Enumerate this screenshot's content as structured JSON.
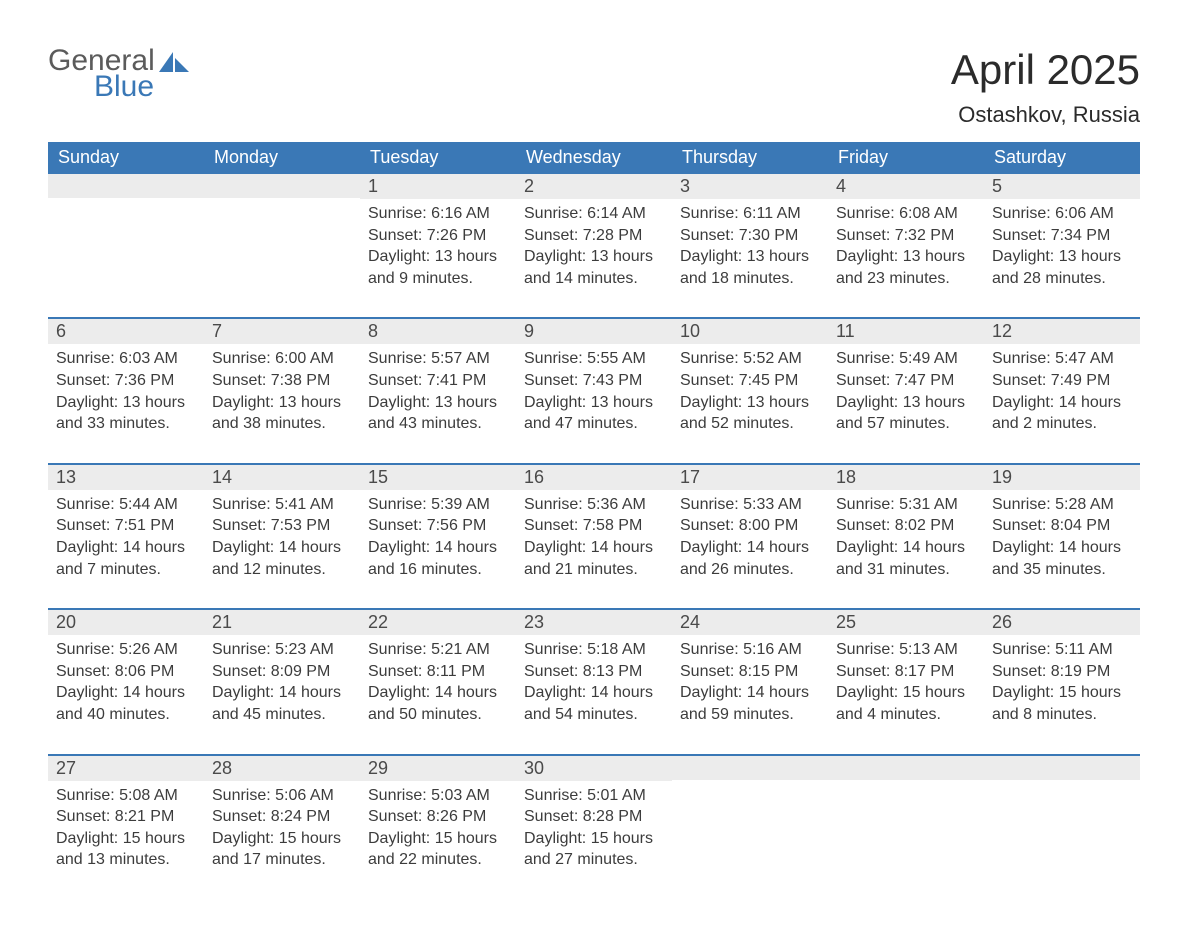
{
  "brand": {
    "line1": "General",
    "line2": "Blue",
    "icon_color": "#3a78b6"
  },
  "title": "April 2025",
  "location": "Ostashkov, Russia",
  "colors": {
    "header_bg": "#3a78b6",
    "header_text": "#ffffff",
    "daynum_bg": "#ececec",
    "text": "#3c3c3c",
    "row_divider": "#3a78b6",
    "background": "#ffffff"
  },
  "weekdays": [
    "Sunday",
    "Monday",
    "Tuesday",
    "Wednesday",
    "Thursday",
    "Friday",
    "Saturday"
  ],
  "weeks": [
    [
      {
        "day": "",
        "lines": []
      },
      {
        "day": "",
        "lines": []
      },
      {
        "day": "1",
        "lines": [
          "Sunrise: 6:16 AM",
          "Sunset: 7:26 PM",
          "Daylight: 13 hours",
          "and 9 minutes."
        ]
      },
      {
        "day": "2",
        "lines": [
          "Sunrise: 6:14 AM",
          "Sunset: 7:28 PM",
          "Daylight: 13 hours",
          "and 14 minutes."
        ]
      },
      {
        "day": "3",
        "lines": [
          "Sunrise: 6:11 AM",
          "Sunset: 7:30 PM",
          "Daylight: 13 hours",
          "and 18 minutes."
        ]
      },
      {
        "day": "4",
        "lines": [
          "Sunrise: 6:08 AM",
          "Sunset: 7:32 PM",
          "Daylight: 13 hours",
          "and 23 minutes."
        ]
      },
      {
        "day": "5",
        "lines": [
          "Sunrise: 6:06 AM",
          "Sunset: 7:34 PM",
          "Daylight: 13 hours",
          "and 28 minutes."
        ]
      }
    ],
    [
      {
        "day": "6",
        "lines": [
          "Sunrise: 6:03 AM",
          "Sunset: 7:36 PM",
          "Daylight: 13 hours",
          "and 33 minutes."
        ]
      },
      {
        "day": "7",
        "lines": [
          "Sunrise: 6:00 AM",
          "Sunset: 7:38 PM",
          "Daylight: 13 hours",
          "and 38 minutes."
        ]
      },
      {
        "day": "8",
        "lines": [
          "Sunrise: 5:57 AM",
          "Sunset: 7:41 PM",
          "Daylight: 13 hours",
          "and 43 minutes."
        ]
      },
      {
        "day": "9",
        "lines": [
          "Sunrise: 5:55 AM",
          "Sunset: 7:43 PM",
          "Daylight: 13 hours",
          "and 47 minutes."
        ]
      },
      {
        "day": "10",
        "lines": [
          "Sunrise: 5:52 AM",
          "Sunset: 7:45 PM",
          "Daylight: 13 hours",
          "and 52 minutes."
        ]
      },
      {
        "day": "11",
        "lines": [
          "Sunrise: 5:49 AM",
          "Sunset: 7:47 PM",
          "Daylight: 13 hours",
          "and 57 minutes."
        ]
      },
      {
        "day": "12",
        "lines": [
          "Sunrise: 5:47 AM",
          "Sunset: 7:49 PM",
          "Daylight: 14 hours",
          "and 2 minutes."
        ]
      }
    ],
    [
      {
        "day": "13",
        "lines": [
          "Sunrise: 5:44 AM",
          "Sunset: 7:51 PM",
          "Daylight: 14 hours",
          "and 7 minutes."
        ]
      },
      {
        "day": "14",
        "lines": [
          "Sunrise: 5:41 AM",
          "Sunset: 7:53 PM",
          "Daylight: 14 hours",
          "and 12 minutes."
        ]
      },
      {
        "day": "15",
        "lines": [
          "Sunrise: 5:39 AM",
          "Sunset: 7:56 PM",
          "Daylight: 14 hours",
          "and 16 minutes."
        ]
      },
      {
        "day": "16",
        "lines": [
          "Sunrise: 5:36 AM",
          "Sunset: 7:58 PM",
          "Daylight: 14 hours",
          "and 21 minutes."
        ]
      },
      {
        "day": "17",
        "lines": [
          "Sunrise: 5:33 AM",
          "Sunset: 8:00 PM",
          "Daylight: 14 hours",
          "and 26 minutes."
        ]
      },
      {
        "day": "18",
        "lines": [
          "Sunrise: 5:31 AM",
          "Sunset: 8:02 PM",
          "Daylight: 14 hours",
          "and 31 minutes."
        ]
      },
      {
        "day": "19",
        "lines": [
          "Sunrise: 5:28 AM",
          "Sunset: 8:04 PM",
          "Daylight: 14 hours",
          "and 35 minutes."
        ]
      }
    ],
    [
      {
        "day": "20",
        "lines": [
          "Sunrise: 5:26 AM",
          "Sunset: 8:06 PM",
          "Daylight: 14 hours",
          "and 40 minutes."
        ]
      },
      {
        "day": "21",
        "lines": [
          "Sunrise: 5:23 AM",
          "Sunset: 8:09 PM",
          "Daylight: 14 hours",
          "and 45 minutes."
        ]
      },
      {
        "day": "22",
        "lines": [
          "Sunrise: 5:21 AM",
          "Sunset: 8:11 PM",
          "Daylight: 14 hours",
          "and 50 minutes."
        ]
      },
      {
        "day": "23",
        "lines": [
          "Sunrise: 5:18 AM",
          "Sunset: 8:13 PM",
          "Daylight: 14 hours",
          "and 54 minutes."
        ]
      },
      {
        "day": "24",
        "lines": [
          "Sunrise: 5:16 AM",
          "Sunset: 8:15 PM",
          "Daylight: 14 hours",
          "and 59 minutes."
        ]
      },
      {
        "day": "25",
        "lines": [
          "Sunrise: 5:13 AM",
          "Sunset: 8:17 PM",
          "Daylight: 15 hours",
          "and 4 minutes."
        ]
      },
      {
        "day": "26",
        "lines": [
          "Sunrise: 5:11 AM",
          "Sunset: 8:19 PM",
          "Daylight: 15 hours",
          "and 8 minutes."
        ]
      }
    ],
    [
      {
        "day": "27",
        "lines": [
          "Sunrise: 5:08 AM",
          "Sunset: 8:21 PM",
          "Daylight: 15 hours",
          "and 13 minutes."
        ]
      },
      {
        "day": "28",
        "lines": [
          "Sunrise: 5:06 AM",
          "Sunset: 8:24 PM",
          "Daylight: 15 hours",
          "and 17 minutes."
        ]
      },
      {
        "day": "29",
        "lines": [
          "Sunrise: 5:03 AM",
          "Sunset: 8:26 PM",
          "Daylight: 15 hours",
          "and 22 minutes."
        ]
      },
      {
        "day": "30",
        "lines": [
          "Sunrise: 5:01 AM",
          "Sunset: 8:28 PM",
          "Daylight: 15 hours",
          "and 27 minutes."
        ]
      },
      {
        "day": "",
        "lines": []
      },
      {
        "day": "",
        "lines": []
      },
      {
        "day": "",
        "lines": []
      }
    ]
  ]
}
